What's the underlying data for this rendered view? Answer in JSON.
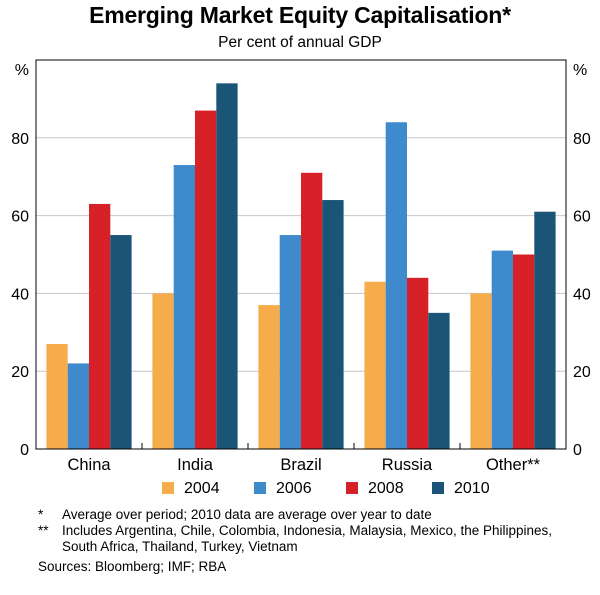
{
  "chart_data": {
    "type": "bar",
    "title": "Emerging Market Equity Capitalisation*",
    "subtitle": "Per cent of annual GDP",
    "ylabel_left": "%",
    "ylabel_right": "%",
    "ylim": [
      0,
      100
    ],
    "yticks": [
      0,
      20,
      40,
      60,
      80
    ],
    "categories": [
      "China",
      "India",
      "Brazil",
      "Russia",
      "Other**"
    ],
    "series": [
      {
        "name": "2004",
        "color": "#F7AC4C",
        "values": [
          27,
          40,
          37,
          43,
          40
        ]
      },
      {
        "name": "2006",
        "color": "#3E8ACC",
        "values": [
          22,
          73,
          55,
          84,
          51
        ]
      },
      {
        "name": "2008",
        "color": "#D62128",
        "values": [
          63,
          87,
          71,
          44,
          50
        ]
      },
      {
        "name": "2010",
        "color": "#1A5577",
        "values": [
          55,
          94,
          64,
          35,
          61
        ]
      }
    ]
  },
  "footnotes": [
    {
      "mark": "*",
      "text": "Average over period; 2010 data are average over year to date"
    },
    {
      "mark": "**",
      "text": "Includes Argentina, Chile, Colombia, Indonesia, Malaysia, Mexico, the Philippines, South Africa, Thailand, Turkey, Vietnam"
    }
  ],
  "sources": "Sources: Bloomberg; IMF; RBA"
}
